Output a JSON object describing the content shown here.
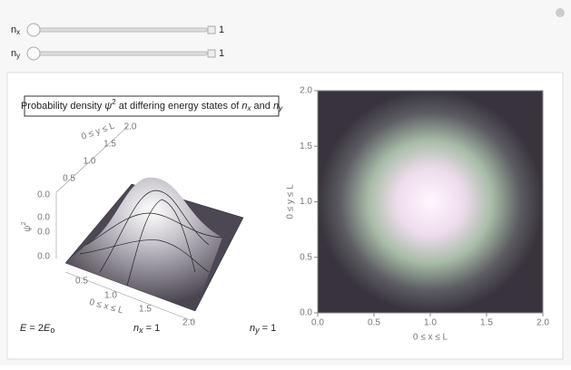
{
  "controls": [
    {
      "label": {
        "base": "n",
        "sub": "x"
      },
      "value": "1"
    },
    {
      "label": {
        "base": "n",
        "sub": "y"
      },
      "value": "1"
    }
  ],
  "surface_plot": {
    "title": [
      "Probability density ",
      "ψ",
      "2",
      " at differing energy states of ",
      "n",
      "x",
      " and ",
      "n",
      "y"
    ],
    "z_label": {
      "base": "ψ",
      "sup": "2"
    },
    "z_ticks": [
      "0.0",
      "0.0",
      "0.0",
      "0.0"
    ],
    "y_label": "0 ≤ y ≤ L",
    "y_ticks": [
      "0.5",
      "1.0",
      "1.5",
      "2.0"
    ],
    "x_label": "0 ≤ x ≤ L",
    "x_ticks": [
      "0.5",
      "1.0",
      "1.5",
      "2.0"
    ]
  },
  "annotations": {
    "energy": [
      "E",
      " = 2",
      "E",
      "o"
    ],
    "nx": [
      "n",
      "x",
      " = 1"
    ],
    "ny": [
      "n",
      "y",
      " = 1"
    ]
  },
  "density_plot": {
    "x_label": "0 ≤ x ≤ L",
    "y_label": "0 ≤ y ≤ L",
    "xlim": [
      0,
      2
    ],
    "ylim": [
      0,
      2
    ],
    "xticks": [
      {
        "value": 0,
        "label": "0.0"
      },
      {
        "value": 0.5,
        "label": "0.5"
      },
      {
        "value": 1,
        "label": "1.0"
      },
      {
        "value": 1.5,
        "label": "1.5"
      },
      {
        "value": 2,
        "label": "2.0"
      }
    ],
    "yticks": [
      {
        "value": 0,
        "label": "0.0"
      },
      {
        "value": 0.5,
        "label": "0.5"
      },
      {
        "value": 1,
        "label": "1.0"
      },
      {
        "value": 1.5,
        "label": "1.5"
      },
      {
        "value": 2,
        "label": "2.0"
      }
    ]
  }
}
